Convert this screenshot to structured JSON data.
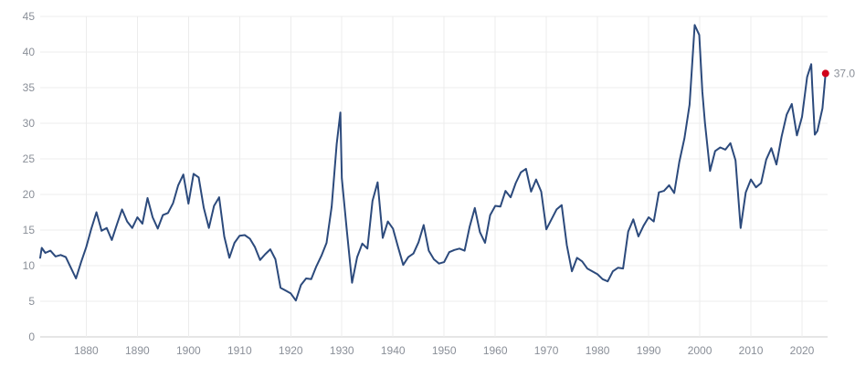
{
  "chart_data": {
    "type": "line",
    "xlim": [
      1871,
      2025
    ],
    "ylim": [
      0,
      45
    ],
    "x_ticks": [
      1880,
      1890,
      1900,
      1910,
      1920,
      1930,
      1940,
      1950,
      1960,
      1970,
      1980,
      1990,
      2000,
      2010,
      2020
    ],
    "y_ticks": [
      0,
      5,
      10,
      15,
      20,
      25,
      30,
      35,
      40,
      45
    ],
    "grid": true,
    "colors": {
      "line": "#2c4a7c",
      "marker": "#d0021b",
      "grid": "#ececec",
      "tick_text": "#8a8f98"
    },
    "series": [
      {
        "x": [
          1871,
          1871.3,
          1872,
          1873,
          1874,
          1875,
          1876,
          1877,
          1878,
          1879,
          1880,
          1881,
          1882,
          1883,
          1884,
          1885,
          1886,
          1887,
          1888,
          1889,
          1890,
          1891,
          1892,
          1893,
          1894,
          1895,
          1896,
          1897,
          1898,
          1899,
          1900,
          1901,
          1902,
          1903,
          1904,
          1905,
          1906,
          1907,
          1908,
          1909,
          1910,
          1911,
          1912,
          1913,
          1914,
          1915,
          1916,
          1917,
          1918,
          1919,
          1920,
          1921,
          1922,
          1923,
          1924,
          1925,
          1926,
          1927,
          1928,
          1929,
          1929.7,
          1930,
          1931,
          1932,
          1933,
          1934,
          1935,
          1936,
          1937,
          1938,
          1939,
          1940,
          1941,
          1942,
          1943,
          1944,
          1945,
          1946,
          1947,
          1948,
          1949,
          1950,
          1951,
          1952,
          1953,
          1954,
          1955,
          1956,
          1957,
          1958,
          1959,
          1960,
          1961,
          1962,
          1963,
          1964,
          1965,
          1966,
          1967,
          1968,
          1969,
          1970,
          1971,
          1972,
          1973,
          1974,
          1975,
          1976,
          1977,
          1978,
          1979,
          1980,
          1981,
          1982,
          1983,
          1984,
          1985,
          1986,
          1987,
          1988,
          1989,
          1990,
          1991,
          1992,
          1993,
          1994,
          1995,
          1996,
          1997,
          1998,
          1999,
          1999.9,
          2000.5,
          2001,
          2002,
          2003,
          2004,
          2005,
          2006,
          2007,
          2008,
          2009,
          2010,
          2011,
          2012,
          2013,
          2014,
          2015,
          2016,
          2017,
          2018,
          2019,
          2020,
          2021,
          2021.8,
          2022,
          2022.5,
          2023,
          2024,
          2024.6
        ],
        "y": [
          11.1,
          12.5,
          11.8,
          12.1,
          11.3,
          11.5,
          11.2,
          9.7,
          8.2,
          10.5,
          12.6,
          15.2,
          17.5,
          14.9,
          15.3,
          13.6,
          15.8,
          17.9,
          16.2,
          15.3,
          16.8,
          15.9,
          19.5,
          16.8,
          15.2,
          17.1,
          17.4,
          18.8,
          21.3,
          22.8,
          18.7,
          22.9,
          22.4,
          18.1,
          15.3,
          18.4,
          19.6,
          14.1,
          11.1,
          13.2,
          14.2,
          14.3,
          13.8,
          12.6,
          10.8,
          11.6,
          12.3,
          10.9,
          6.9,
          6.5,
          6.1,
          5.1,
          7.3,
          8.2,
          8.1,
          9.9,
          11.4,
          13.2,
          18.3,
          27.1,
          31.5,
          22.3,
          14.8,
          7.6,
          11.2,
          13.1,
          12.4,
          19.1,
          21.7,
          13.9,
          16.2,
          15.2,
          12.6,
          10.1,
          11.2,
          11.7,
          13.3,
          15.7,
          12.1,
          10.9,
          10.3,
          10.5,
          11.9,
          12.2,
          12.4,
          12.1,
          15.5,
          18.1,
          14.7,
          13.2,
          17.1,
          18.4,
          18.3,
          20.5,
          19.6,
          21.6,
          23.1,
          23.6,
          20.4,
          22.1,
          20.4,
          15.1,
          16.5,
          17.9,
          18.5,
          12.9,
          9.2,
          11.1,
          10.6,
          9.6,
          9.2,
          8.8,
          8.1,
          7.8,
          9.2,
          9.7,
          9.6,
          14.8,
          16.5,
          14.1,
          15.6,
          16.8,
          16.2,
          20.3,
          20.5,
          21.3,
          20.2,
          24.6,
          27.9,
          32.6,
          43.8,
          42.4,
          34.4,
          30.1,
          23.3,
          26.1,
          26.6,
          26.3,
          27.2,
          24.8,
          15.3,
          20.3,
          22.1,
          21.0,
          21.6,
          24.9,
          26.5,
          24.2,
          28.1,
          31.2,
          32.7,
          28.3,
          30.9,
          36.5,
          38.3,
          35.2,
          28.4,
          28.9,
          32.1,
          37.0
        ]
      }
    ],
    "end_point": {
      "x": 2024.6,
      "y": 37.0,
      "label": "37.0"
    }
  }
}
